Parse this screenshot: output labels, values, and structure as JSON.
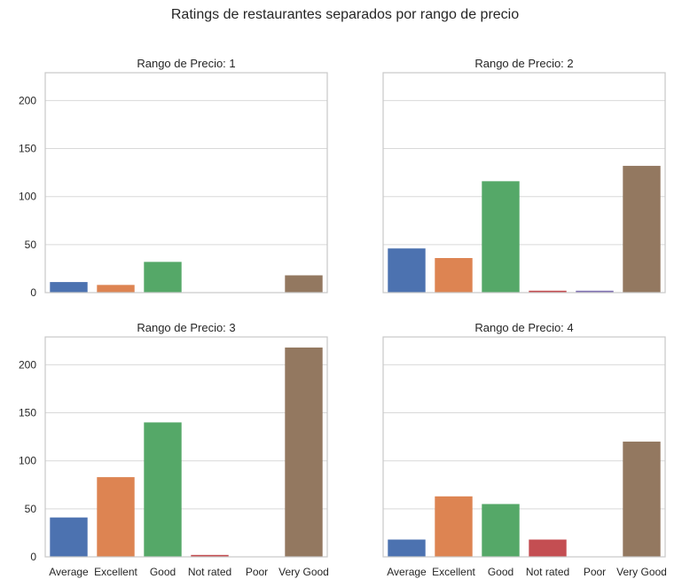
{
  "suptitle": "Ratings de restaurantes separados por rango de precio",
  "colors": {
    "Average": "#4c72b0",
    "Excellent": "#dd8452",
    "Good": "#55a868",
    "Not rated": "#c44e52",
    "Poor": "#8172b3",
    "Very Good": "#937860",
    "grid": "#d9d9d9",
    "spine": "#c8c8c8",
    "text": "#262626"
  },
  "chart_data": [
    {
      "type": "bar",
      "title": "Rango de Precio: 1",
      "categories": [
        "Average",
        "Excellent",
        "Good",
        "Not rated",
        "Poor",
        "Very Good"
      ],
      "values": [
        11,
        8,
        32,
        0,
        0,
        18
      ],
      "yticks": [
        "0",
        "50",
        "100",
        "150",
        "200"
      ],
      "ylim": [
        0,
        229
      ],
      "grid": true
    },
    {
      "type": "bar",
      "title": "Rango de Precio: 2",
      "categories": [
        "Average",
        "Excellent",
        "Good",
        "Not rated",
        "Poor",
        "Very Good"
      ],
      "values": [
        46,
        36,
        116,
        2,
        2,
        132
      ],
      "ylim": [
        0,
        229
      ],
      "grid": true
    },
    {
      "type": "bar",
      "title": "Rango de Precio: 3",
      "categories": [
        "Average",
        "Excellent",
        "Good",
        "Not rated",
        "Poor",
        "Very Good"
      ],
      "values": [
        41,
        83,
        140,
        2,
        0,
        218
      ],
      "yticks": [
        "0",
        "50",
        "100",
        "150",
        "200"
      ],
      "xticks": [
        "Average",
        "Excellent",
        "Good",
        "Not rated",
        "Poor",
        "Very Good"
      ],
      "ylim": [
        0,
        229
      ],
      "grid": true
    },
    {
      "type": "bar",
      "title": "Rango de Precio: 4",
      "categories": [
        "Average",
        "Excellent",
        "Good",
        "Not rated",
        "Poor",
        "Very Good"
      ],
      "values": [
        18,
        63,
        55,
        18,
        0,
        120
      ],
      "xticks": [
        "Average",
        "Excellent",
        "Good",
        "Not rated",
        "Poor",
        "Very Good"
      ],
      "ylim": [
        0,
        229
      ],
      "grid": true
    }
  ]
}
